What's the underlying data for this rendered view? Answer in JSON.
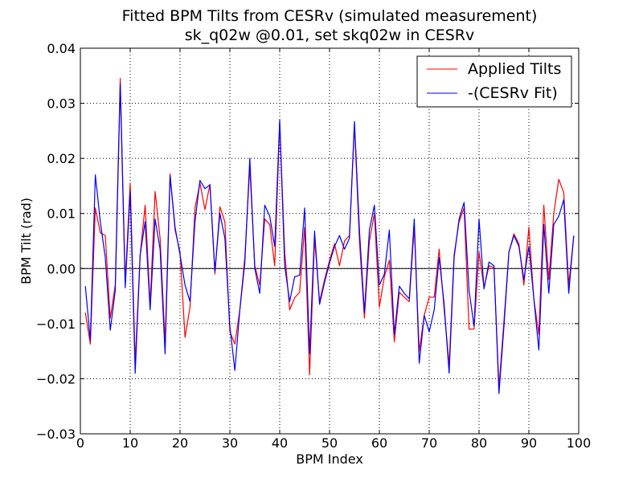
{
  "chart_data": {
    "type": "line",
    "title": "Fitted BPM Tilts from CESRv (simulated measurement)",
    "subtitle": "sk_q02w @0.01, set skq02w in CESRv",
    "xlabel": "BPM Index",
    "ylabel": "BPM Tilt (rad)",
    "xlim": [
      0,
      100
    ],
    "ylim": [
      -0.03,
      0.04
    ],
    "xticks": [
      0,
      10,
      20,
      30,
      40,
      50,
      60,
      70,
      80,
      90,
      100
    ],
    "yticks": [
      -0.03,
      -0.02,
      -0.01,
      0.0,
      0.01,
      0.02,
      0.03,
      0.04
    ],
    "xtick_labels": [
      "0",
      "10",
      "20",
      "30",
      "40",
      "50",
      "60",
      "70",
      "80",
      "90",
      "100"
    ],
    "ytick_labels": [
      "−0.03",
      "−0.02",
      "−0.01",
      "0.00",
      "0.01",
      "0.02",
      "0.03",
      "0.04"
    ],
    "grid": true,
    "legend_position": "top-right",
    "series": [
      {
        "name": "Applied Tilts",
        "color": "#ff0000",
        "x": [
          1,
          2,
          3,
          4,
          5,
          6,
          7,
          8,
          9,
          10,
          11,
          12,
          13,
          14,
          15,
          16,
          17,
          18,
          19,
          20,
          21,
          22,
          23,
          24,
          25,
          26,
          27,
          28,
          29,
          30,
          31,
          32,
          33,
          34,
          35,
          36,
          37,
          38,
          39,
          40,
          41,
          42,
          43,
          44,
          45,
          46,
          47,
          48,
          49,
          50,
          51,
          52,
          53,
          54,
          55,
          56,
          57,
          58,
          59,
          60,
          61,
          62,
          63,
          64,
          65,
          66,
          67,
          68,
          69,
          70,
          71,
          72,
          73,
          74,
          75,
          76,
          77,
          78,
          79,
          80,
          81,
          82,
          83,
          84,
          85,
          86,
          87,
          88,
          89,
          90,
          91,
          92,
          93,
          94,
          95,
          96,
          97,
          98,
          99
        ],
        "values": [
          -0.008,
          -0.0137,
          0.011,
          0.0065,
          0.006,
          -0.009,
          -0.003,
          0.0345,
          -0.0025,
          0.0155,
          -0.017,
          0.0025,
          0.0115,
          -0.0065,
          0.014,
          0.0055,
          -0.0135,
          0.0172,
          0.007,
          0.003,
          -0.0125,
          -0.007,
          0.011,
          0.0155,
          0.0107,
          0.0153,
          -0.001,
          0.0112,
          0.0085,
          -0.0115,
          -0.0137,
          -0.0075,
          0.002,
          0.0185,
          0.0005,
          -0.003,
          0.009,
          0.008,
          0.0005,
          0.0265,
          0.003,
          -0.0075,
          -0.0053,
          -0.0043,
          0.0075,
          -0.0193,
          0.0055,
          -0.006,
          -0.002,
          0.0015,
          0.0045,
          0.0005,
          0.005,
          0.006,
          0.0262,
          0.005,
          -0.009,
          0.005,
          0.01,
          -0.007,
          -0.0015,
          0.0015,
          -0.0133,
          -0.0043,
          -0.0052,
          -0.006,
          0.0075,
          -0.015,
          -0.0085,
          -0.0052,
          -0.0052,
          0.0035,
          -0.0075,
          -0.0175,
          0.0025,
          0.0085,
          0.011,
          -0.011,
          -0.011,
          0.003,
          -0.0035,
          0.0005,
          0.0002,
          -0.0215,
          -0.0095,
          0.003,
          0.0063,
          0.0045,
          -0.003,
          0.0075,
          -0.0055,
          -0.012,
          0.0115,
          -0.002,
          0.01,
          0.0162,
          0.0138,
          -0.003,
          0.0058
        ]
      },
      {
        "name": "-(CESRv Fit)",
        "color": "#0000ff",
        "x": [
          1,
          2,
          3,
          4,
          5,
          6,
          7,
          8,
          9,
          10,
          11,
          12,
          13,
          14,
          15,
          16,
          17,
          18,
          19,
          20,
          21,
          22,
          23,
          24,
          25,
          26,
          27,
          28,
          29,
          30,
          31,
          32,
          33,
          34,
          35,
          36,
          37,
          38,
          39,
          40,
          41,
          42,
          43,
          44,
          45,
          46,
          47,
          48,
          49,
          50,
          51,
          52,
          53,
          54,
          55,
          56,
          57,
          58,
          59,
          60,
          61,
          62,
          63,
          64,
          65,
          66,
          67,
          68,
          69,
          70,
          71,
          72,
          73,
          74,
          75,
          76,
          77,
          78,
          79,
          80,
          81,
          82,
          83,
          84,
          85,
          86,
          87,
          88,
          89,
          90,
          91,
          92,
          93,
          94,
          95,
          96,
          97,
          98,
          99
        ],
        "values": [
          -0.0032,
          -0.013,
          0.017,
          0.0085,
          0.002,
          -0.0112,
          -0.004,
          0.0335,
          -0.0035,
          0.014,
          -0.019,
          0.0025,
          0.0085,
          -0.0075,
          0.009,
          0.0035,
          -0.0155,
          0.0168,
          0.0075,
          0.0025,
          -0.003,
          -0.006,
          0.0085,
          0.016,
          0.0145,
          0.0152,
          -0.0005,
          0.01,
          0.0055,
          -0.0105,
          -0.0185,
          -0.0075,
          0.001,
          0.02,
          0.0,
          -0.0045,
          0.0115,
          0.0095,
          0.004,
          0.027,
          0.0005,
          -0.006,
          -0.0015,
          -0.0012,
          0.011,
          -0.0155,
          0.0068,
          -0.0065,
          -0.0025,
          0.001,
          0.004,
          0.006,
          0.0035,
          0.0055,
          0.0267,
          0.007,
          -0.008,
          0.007,
          0.0115,
          -0.003,
          -0.001,
          0.007,
          -0.012,
          -0.0032,
          -0.0045,
          -0.0055,
          0.009,
          -0.0172,
          -0.0085,
          -0.0115,
          -0.0075,
          0.002,
          -0.0065,
          -0.019,
          0.002,
          0.009,
          0.012,
          -0.004,
          -0.0105,
          0.009,
          -0.0037,
          0.0012,
          0.0005,
          -0.0227,
          -0.0105,
          0.003,
          0.006,
          0.004,
          -0.002,
          0.004,
          -0.0055,
          -0.0148,
          0.008,
          -0.0045,
          0.008,
          0.0095,
          0.0125,
          -0.0045,
          0.006
        ]
      }
    ]
  }
}
